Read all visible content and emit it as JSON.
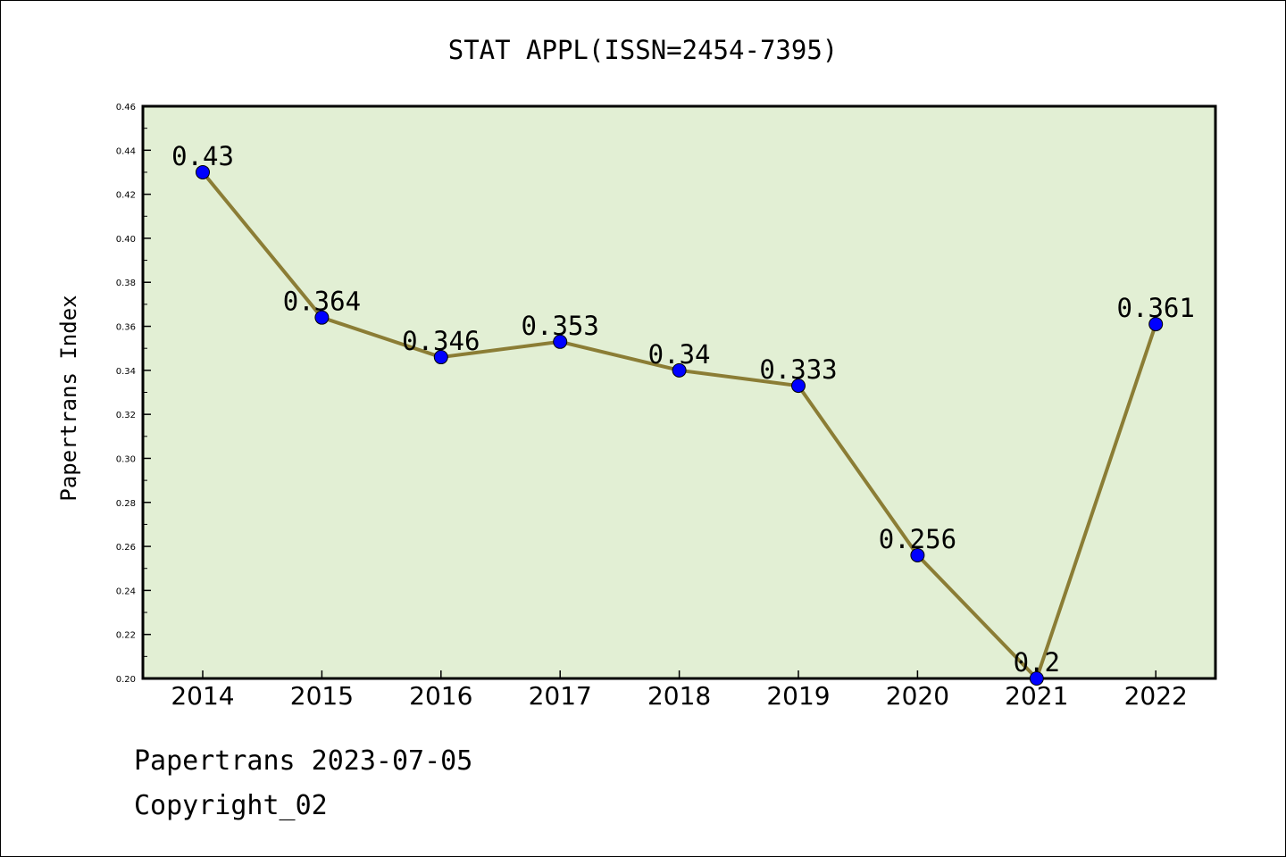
{
  "chart_data": {
    "type": "line",
    "title": "STAT APPL(ISSN=2454-7395)",
    "xlabel": "",
    "ylabel": "Papertrans Index",
    "categories": [
      "2014",
      "2015",
      "2016",
      "2017",
      "2018",
      "2019",
      "2020",
      "2021",
      "2022"
    ],
    "series": [
      {
        "values": [
          0.43,
          0.364,
          0.346,
          0.353,
          0.34,
          0.333,
          0.256,
          0.2,
          0.361
        ],
        "data_labels": [
          "0.43",
          "0.364",
          "0.346",
          "0.353",
          "0.34",
          "0.333",
          "0.256",
          "0.2",
          "0.361"
        ]
      }
    ],
    "ylim": [
      0.2,
      0.46
    ],
    "yticks": [
      "0.20",
      "0.22",
      "0.24",
      "0.26",
      "0.28",
      "0.30",
      "0.32",
      "0.34",
      "0.36",
      "0.38",
      "0.40",
      "0.42",
      "0.44",
      "0.46"
    ],
    "grid": false,
    "legend": "none",
    "colors": {
      "plot_background": "#e2efd4",
      "line": "#8b7d35",
      "marker": "#0000ff"
    }
  },
  "footer": {
    "line1": "Papertrans 2023-07-05",
    "line2": "Copyright_02"
  }
}
